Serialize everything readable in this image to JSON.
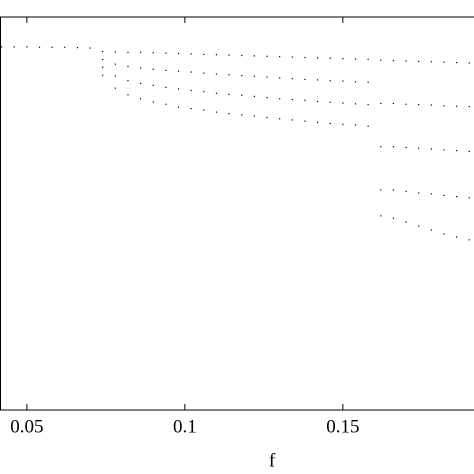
{
  "chart_data": {
    "type": "scatter",
    "xlabel": "f",
    "color": "#000000",
    "xlim": [
      0.0415,
      0.1915
    ],
    "xticks": [
      0.05,
      0.1,
      0.15
    ],
    "ylim": [
      0,
      1
    ],
    "x": [
      0.042,
      0.046,
      0.05,
      0.054,
      0.058,
      0.062,
      0.066,
      0.07,
      0.074,
      0.074,
      0.074,
      0.074,
      0.078,
      0.078,
      0.078,
      0.078,
      0.082,
      0.082,
      0.082,
      0.082,
      0.086,
      0.086,
      0.086,
      0.086,
      0.09,
      0.09,
      0.09,
      0.09,
      0.094,
      0.094,
      0.094,
      0.094,
      0.098,
      0.098,
      0.098,
      0.098,
      0.102,
      0.102,
      0.102,
      0.102,
      0.106,
      0.106,
      0.106,
      0.106,
      0.11,
      0.11,
      0.11,
      0.11,
      0.114,
      0.114,
      0.114,
      0.114,
      0.118,
      0.118,
      0.118,
      0.118,
      0.122,
      0.122,
      0.122,
      0.122,
      0.126,
      0.126,
      0.126,
      0.126,
      0.13,
      0.13,
      0.13,
      0.13,
      0.134,
      0.134,
      0.134,
      0.134,
      0.138,
      0.138,
      0.138,
      0.138,
      0.142,
      0.142,
      0.142,
      0.142,
      0.146,
      0.146,
      0.146,
      0.146,
      0.15,
      0.15,
      0.15,
      0.15,
      0.154,
      0.154,
      0.154,
      0.154,
      0.158,
      0.158,
      0.158,
      0.158,
      0.162,
      0.162,
      0.162,
      0.162,
      0.162,
      0.166,
      0.166,
      0.166,
      0.166,
      0.166,
      0.17,
      0.17,
      0.17,
      0.17,
      0.17,
      0.174,
      0.174,
      0.174,
      0.174,
      0.174,
      0.178,
      0.178,
      0.178,
      0.178,
      0.178,
      0.182,
      0.182,
      0.182,
      0.182,
      0.182,
      0.186,
      0.186,
      0.186,
      0.186,
      0.186,
      0.19,
      0.19,
      0.19,
      0.19,
      0.19
    ],
    "values": [
      0.924,
      0.924,
      0.924,
      0.923,
      0.923,
      0.923,
      0.922,
      0.921,
      0.912,
      0.892,
      0.872,
      0.852,
      0.911,
      0.88,
      0.85,
      0.819,
      0.91,
      0.874,
      0.838,
      0.802,
      0.91,
      0.87,
      0.831,
      0.792,
      0.909,
      0.867,
      0.826,
      0.784,
      0.908,
      0.864,
      0.821,
      0.778,
      0.907,
      0.862,
      0.817,
      0.771,
      0.906,
      0.86,
      0.813,
      0.767,
      0.905,
      0.857,
      0.81,
      0.763,
      0.904,
      0.855,
      0.806,
      0.758,
      0.903,
      0.853,
      0.803,
      0.754,
      0.902,
      0.851,
      0.801,
      0.751,
      0.901,
      0.849,
      0.798,
      0.748,
      0.9,
      0.847,
      0.795,
      0.744,
      0.899,
      0.845,
      0.792,
      0.741,
      0.898,
      0.843,
      0.79,
      0.738,
      0.897,
      0.841,
      0.788,
      0.735,
      0.896,
      0.84,
      0.785,
      0.732,
      0.895,
      0.838,
      0.783,
      0.729,
      0.894,
      0.837,
      0.781,
      0.727,
      0.893,
      0.835,
      0.779,
      0.725,
      0.892,
      0.834,
      0.777,
      0.722,
      0.89,
      0.78,
      0.67,
      0.56,
      0.494,
      0.889,
      0.78,
      0.67,
      0.56,
      0.488,
      0.888,
      0.778,
      0.668,
      0.556,
      0.478,
      0.887,
      0.777,
      0.666,
      0.552,
      0.468,
      0.886,
      0.776,
      0.664,
      0.55,
      0.458,
      0.885,
      0.774,
      0.662,
      0.546,
      0.448,
      0.884,
      0.773,
      0.66,
      0.543,
      0.44,
      0.883,
      0.772,
      0.658,
      0.54,
      0.433
    ]
  }
}
